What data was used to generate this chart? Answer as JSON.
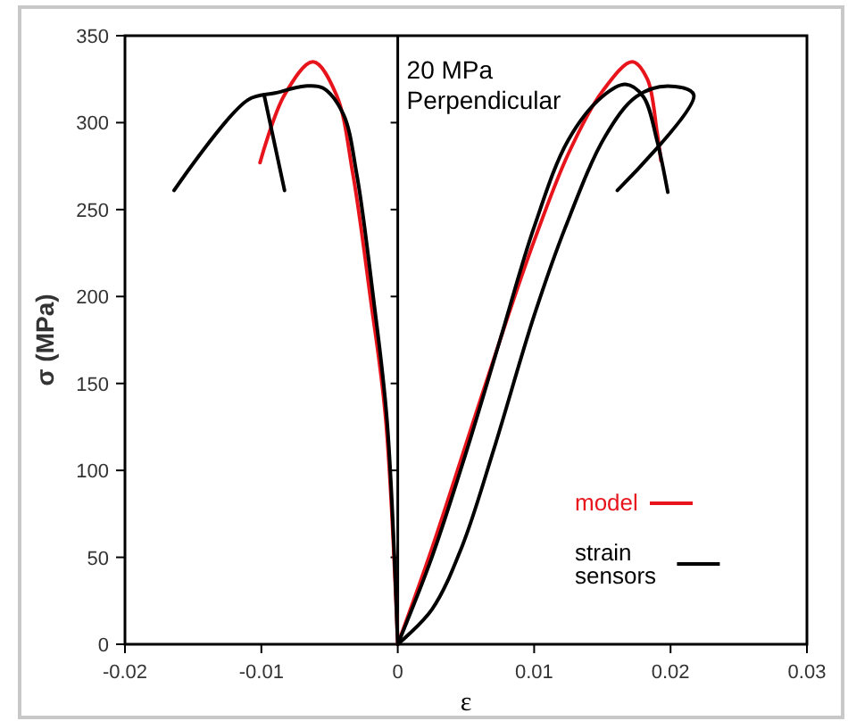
{
  "chart_data": {
    "type": "line",
    "xlabel": "ε",
    "ylabel": "σ (MPa)",
    "annotations": [
      "20 MPa\nPerpendicular"
    ],
    "xlim": [
      -0.02,
      0.03
    ],
    "xticks": [
      -0.02,
      -0.01,
      0,
      0.01,
      0.02,
      0.03
    ],
    "ylim": [
      0,
      350
    ],
    "yticks": [
      0,
      50,
      100,
      150,
      200,
      250,
      300,
      350
    ],
    "grid": false,
    "legend": "bottom right",
    "marker": "none",
    "line_style": "solid",
    "ref_lines": [
      {
        "axis": "x",
        "value": 0,
        "color": "#000000"
      }
    ],
    "series": [
      {
        "name": "model",
        "color": "#e8141c",
        "x": [
          0,
          0.0025,
          0.005,
          0.0075,
          0.01,
          0.0125,
          0.015,
          0.0172,
          0.0183,
          0.019,
          0.0193
        ],
        "values": [
          0,
          55,
          115,
          175,
          232,
          282,
          318,
          335,
          325,
          295,
          278
        ]
      },
      {
        "color": "#e8141c",
        "x": [
          0,
          -0.0009,
          -0.002,
          -0.0033,
          -0.0045,
          -0.0062,
          -0.0083,
          -0.0101
        ],
        "values": [
          0,
          131,
          199,
          271,
          316,
          335,
          316,
          277
        ]
      },
      {
        "name": "strain sensors",
        "color": "#000000",
        "x": [
          0,
          0.0025,
          0.005,
          0.0075,
          0.01,
          0.0125,
          0.015,
          0.0167,
          0.018,
          0.019,
          0.0198
        ],
        "values": [
          0,
          50,
          110,
          175,
          240,
          290,
          315,
          322,
          315,
          290,
          260
        ]
      },
      {
        "color": "#000000",
        "x": [
          0,
          0.0025,
          0.0047,
          0.007,
          0.01,
          0.0123,
          0.0152,
          0.0175,
          0.0198,
          0.0217,
          0.0161
        ],
        "values": [
          0,
          20,
          56,
          111,
          189,
          240,
          292,
          315,
          321,
          316,
          261
        ]
      },
      {
        "color": "#000000",
        "x": [
          0,
          -0.0008,
          -0.0018,
          -0.003,
          -0.004,
          -0.0055,
          -0.0068,
          -0.009,
          -0.011,
          -0.0164
        ],
        "values": [
          0,
          130,
          200,
          270,
          305,
          320,
          321,
          317,
          313,
          261
        ]
      },
      {
        "color": "#000000",
        "x": [
          -0.0098,
          -0.0083
        ],
        "values": [
          316,
          261
        ]
      }
    ]
  }
}
